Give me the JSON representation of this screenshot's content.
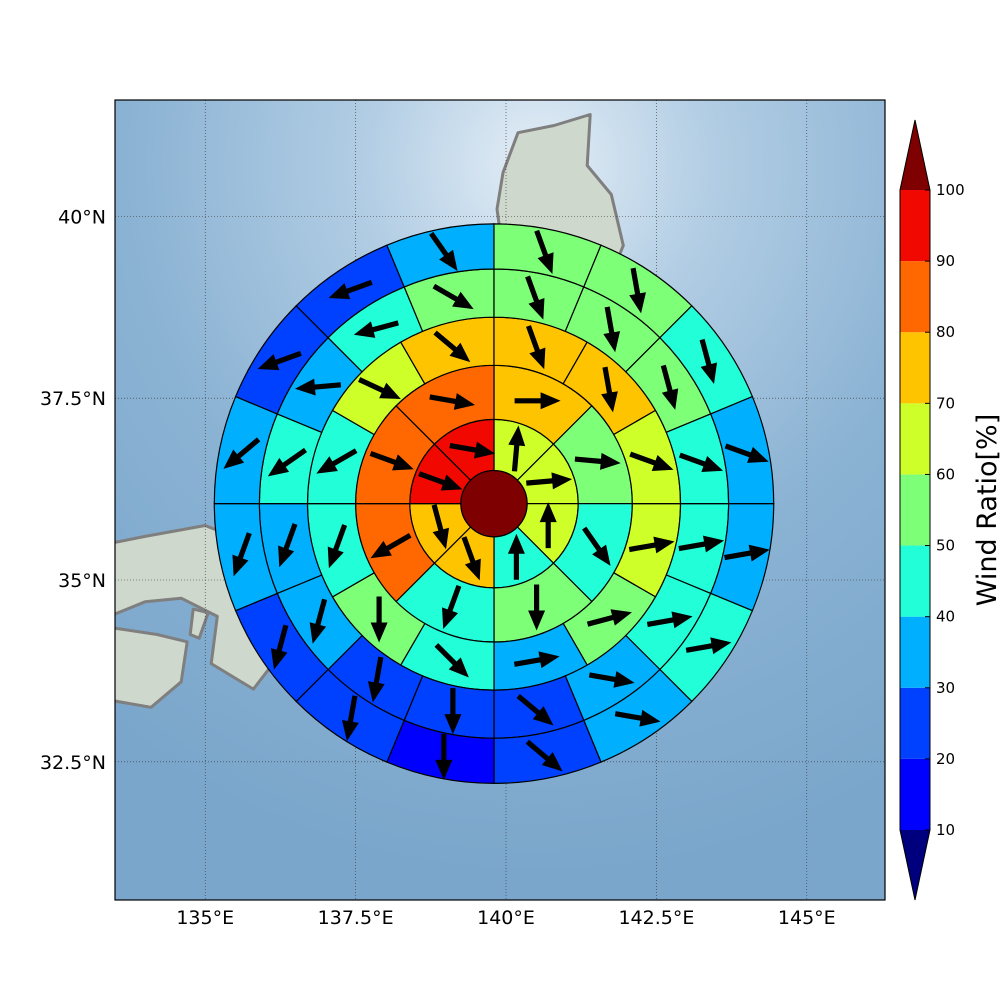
{
  "chart_data": {
    "type": "heatmap",
    "description_kind": "polar-sector wind ratio map with wind direction arrows over a terrain basemap",
    "x_axis": {
      "ticks": [
        135,
        137.5,
        140,
        142.5,
        145
      ],
      "tick_labels": [
        "135°E",
        "137.5°E",
        "140°E",
        "142.5°E",
        "145°E"
      ],
      "range": [
        133.5,
        146.3
      ]
    },
    "y_axis": {
      "ticks": [
        32.5,
        35,
        37.5,
        40
      ],
      "tick_labels": [
        "32.5°N",
        "35°N",
        "37.5°N",
        "40°N"
      ],
      "range": [
        30.6,
        41.6
      ]
    },
    "grid": true,
    "center": {
      "lon": 139.8,
      "lat": 36.05
    },
    "ring_radii_deg": [
      0.55,
      1.4,
      2.3,
      3.1,
      3.9,
      4.65
    ],
    "center_value": 100,
    "rings": [
      {
        "sectors": 8,
        "values": [
          65,
          65,
          65,
          45,
          75,
          75,
          95,
          95
        ],
        "arrow_deg": [
          5,
          85,
          0,
          0,
          160,
          165,
          110,
          100
        ]
      },
      {
        "sectors": 8,
        "values": [
          75,
          55,
          45,
          55,
          45,
          85,
          85,
          85
        ],
        "arrow_deg": [
          90,
          95,
          145,
          180,
          200,
          240,
          110,
          100
        ]
      },
      {
        "sectors": 12,
        "values": [
          65,
          55,
          35,
          45,
          55,
          45,
          45,
          65,
          75,
          75,
          75,
          65
        ],
        "arrow_deg": [
          80,
          75,
          80,
          135,
          180,
          200,
          240,
          115,
          130,
          160,
          170,
          110
        ],
        "start_deg": 90
      },
      {
        "sectors": 16,
        "values": [
          45,
          45,
          35,
          25,
          25,
          25,
          35,
          35,
          45,
          35,
          45,
          55,
          55,
          55,
          55,
          45
        ],
        "arrow_deg": [
          80,
          80,
          100,
          130,
          180,
          190,
          195,
          200,
          235,
          265,
          255,
          120,
          160,
          170,
          165,
          110
        ],
        "start_deg": 90
      },
      {
        "sectors": 16,
        "values": [
          35,
          45,
          35,
          25,
          15,
          25,
          25,
          35,
          35,
          25,
          25,
          35,
          55,
          55,
          45,
          35
        ],
        "arrow_deg": [
          80,
          80,
          100,
          130,
          180,
          190,
          195,
          200,
          230,
          250,
          250,
          145,
          160,
          170,
          165,
          110
        ],
        "start_deg": 90
      }
    ],
    "colorbar": {
      "label": "Wind Ratio[%]",
      "bounds": [
        10,
        20,
        30,
        40,
        50,
        60,
        70,
        80,
        90,
        100
      ],
      "colors": [
        "#0000ff",
        "#0040ff",
        "#00b0ff",
        "#22ffd8",
        "#7dff78",
        "#ceff29",
        "#ffc400",
        "#ff6800",
        "#f10800"
      ],
      "under_color": "#00007f",
      "over_color": "#7f0000"
    },
    "colormap": [
      {
        "min": 0,
        "max": 10,
        "color": "#00007f"
      },
      {
        "min": 10,
        "max": 20,
        "color": "#0000ff"
      },
      {
        "min": 20,
        "max": 30,
        "color": "#0040ff"
      },
      {
        "min": 30,
        "max": 40,
        "color": "#00b0ff"
      },
      {
        "min": 40,
        "max": 50,
        "color": "#22ffd8"
      },
      {
        "min": 50,
        "max": 60,
        "color": "#7dff78"
      },
      {
        "min": 60,
        "max": 70,
        "color": "#ceff29"
      },
      {
        "min": 70,
        "max": 80,
        "color": "#ffc400"
      },
      {
        "min": 80,
        "max": 90,
        "color": "#ff6800"
      },
      {
        "min": 90,
        "max": 100,
        "color": "#f10800"
      },
      {
        "min": 100,
        "max": 999,
        "color": "#7f0000"
      }
    ],
    "map_colors": {
      "ocean": "#8fb6d6",
      "land": "#cfd8cc",
      "coast": "#7f7f7f"
    }
  }
}
